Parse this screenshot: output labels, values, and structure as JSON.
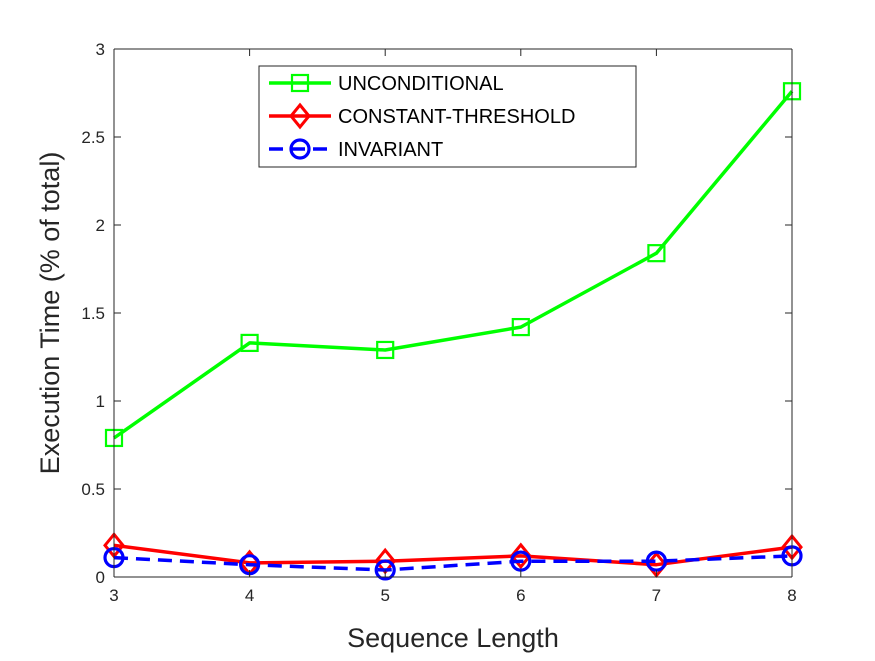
{
  "chart_data": {
    "type": "line",
    "title": "",
    "xlabel": "Sequence Length",
    "ylabel": "Execution Time (% of total)",
    "x": [
      3,
      4,
      5,
      6,
      7,
      8
    ],
    "xlim": [
      3,
      8
    ],
    "ylim": [
      0,
      3
    ],
    "xticks": [
      "3",
      "4",
      "5",
      "6",
      "7",
      "8"
    ],
    "yticks": [
      "0",
      "0.5",
      "1",
      "1.5",
      "2",
      "2.5",
      "3"
    ],
    "grid": false,
    "legend_position": "top-center",
    "series": [
      {
        "name": "UNCONDITIONAL",
        "values": [
          0.79,
          1.33,
          1.29,
          1.42,
          1.84,
          2.76
        ],
        "color": "#00ff00",
        "marker": "square",
        "line_style": "solid"
      },
      {
        "name": "CONSTANT-THRESHOLD",
        "values": [
          0.18,
          0.08,
          0.09,
          0.12,
          0.07,
          0.17
        ],
        "color": "#ff0000",
        "marker": "diamond",
        "line_style": "solid"
      },
      {
        "name": "INVARIANT",
        "values": [
          0.11,
          0.07,
          0.04,
          0.09,
          0.09,
          0.12
        ],
        "color": "#0000ff",
        "marker": "circle",
        "line_style": "dashed"
      }
    ]
  }
}
